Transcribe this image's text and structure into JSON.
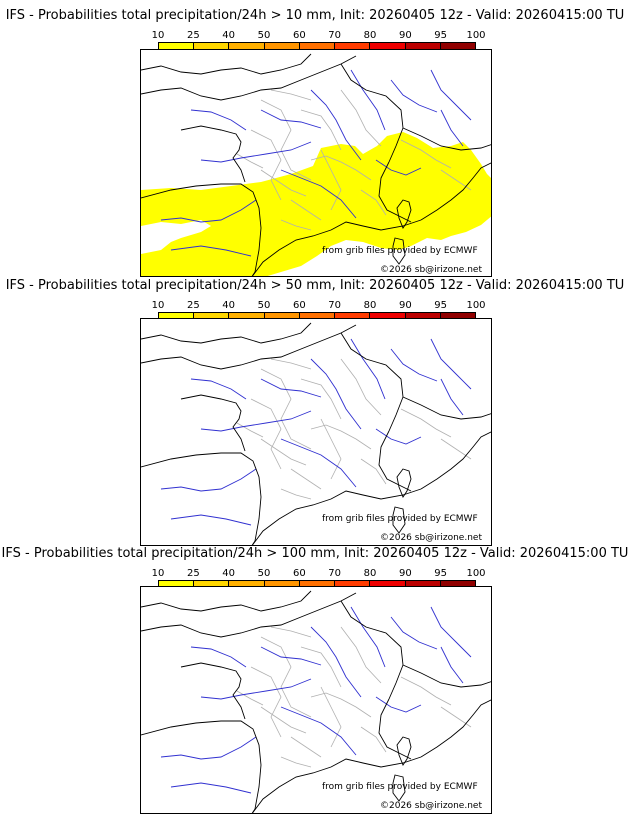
{
  "legend": {
    "ticks": [
      "10",
      "25",
      "40",
      "50",
      "60",
      "70",
      "80",
      "90",
      "95",
      "100"
    ],
    "colors": [
      "#ffff00",
      "#ffd700",
      "#ffb000",
      "#ff9500",
      "#ff7000",
      "#ff3c00",
      "#ee0000",
      "#bb0000",
      "#900000",
      "#600000"
    ]
  },
  "panels": [
    {
      "title": "IFS - Probabilities total precipitation/24h > 10 mm, Init: 20260405 12z - Valid: 20260415:00 TU",
      "threshold_mm": 10,
      "credit_source": "from grib files provided by ECMWF",
      "credit_copyright": "©2026 sb@irizone.net",
      "precip_area": true
    },
    {
      "title": "IFS - Probabilities total precipitation/24h > 50 mm, Init: 20260405 12z - Valid: 20260415:00 TU",
      "threshold_mm": 50,
      "credit_source": "from grib files provided by ECMWF",
      "credit_copyright": "©2026 sb@irizone.net",
      "precip_area": false
    },
    {
      "title": "IFS - Probabilities total precipitation/24h > 100 mm, Init: 20260405 12z - Valid: 20260415:00 TU",
      "threshold_mm": 100,
      "credit_source": "from grib files provided by ECMWF",
      "credit_copyright": "©2026 sb@irizone.net",
      "precip_area": false
    }
  ]
}
